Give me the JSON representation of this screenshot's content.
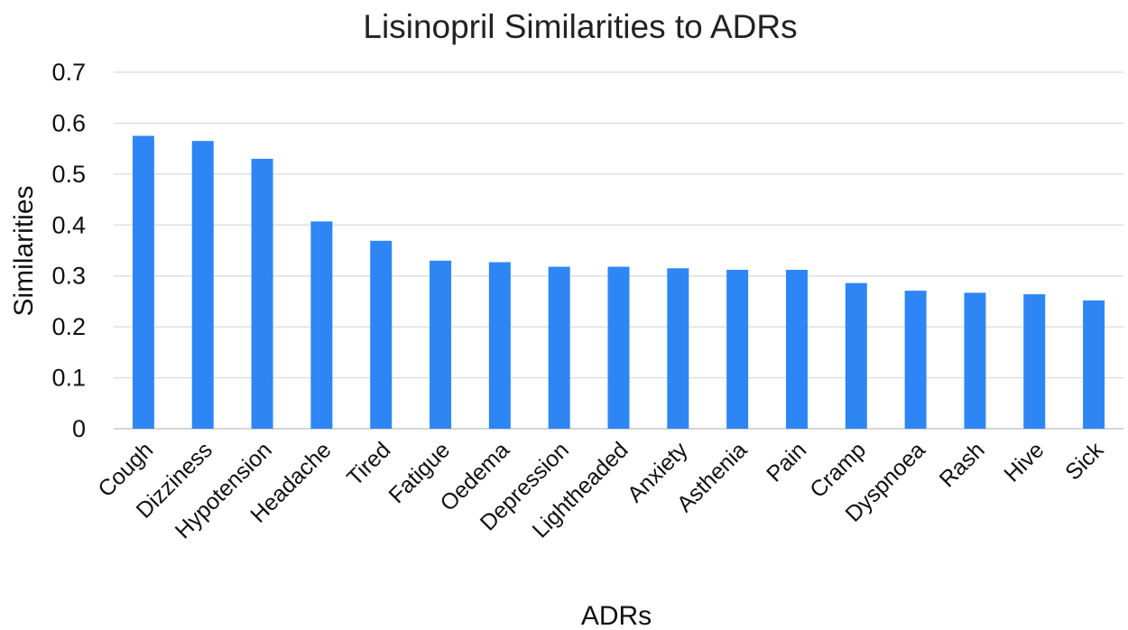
{
  "chart_data": {
    "type": "bar",
    "title": "Lisinopril Similarities to ADRs",
    "xlabel": "ADRs",
    "ylabel": "Similarities",
    "ylim": [
      0,
      0.7
    ],
    "yticks": [
      "0",
      "0.1",
      "0.2",
      "0.3",
      "0.4",
      "0.5",
      "0.6",
      "0.7"
    ],
    "grid": true,
    "bar_color": "#2e86f5",
    "categories": [
      "Cough",
      "Dizziness",
      "Hypotension",
      "Headache",
      "Tired",
      "Fatigue",
      "Oedema",
      "Depression",
      "Lightheaded",
      "Anxiety",
      "Asthenia",
      "Pain",
      "Cramp",
      "Dyspnoea",
      "Rash",
      "Hive",
      "Sick"
    ],
    "values": [
      0.575,
      0.565,
      0.53,
      0.407,
      0.369,
      0.33,
      0.327,
      0.318,
      0.318,
      0.315,
      0.312,
      0.312,
      0.286,
      0.271,
      0.267,
      0.264,
      0.252
    ]
  }
}
